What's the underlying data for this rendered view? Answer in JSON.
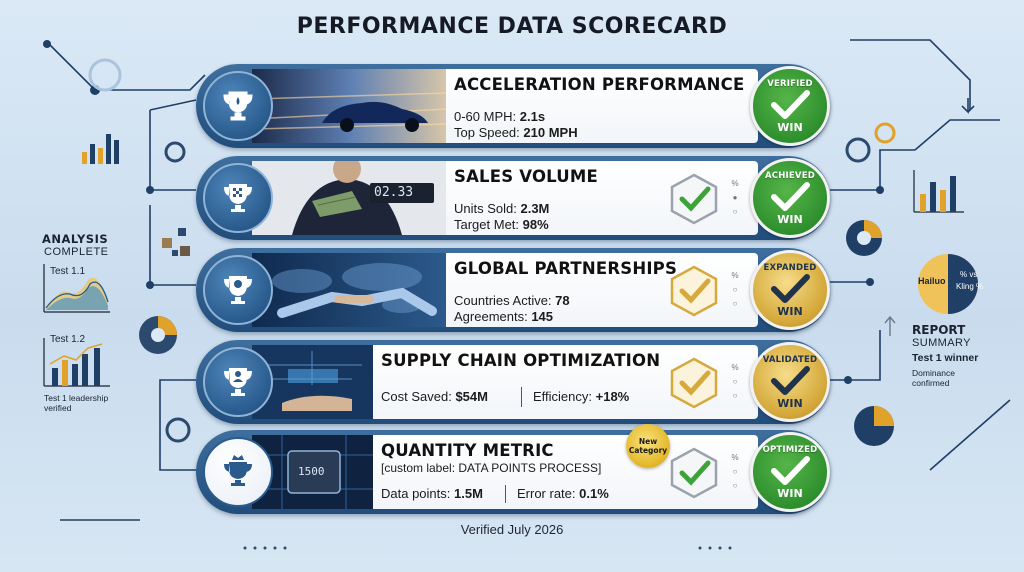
{
  "title": "PERFORMANCE DATA SCORECARD",
  "rows": [
    {
      "title": "ACCELERATION PERFORMANCE",
      "line1_label": "0-60 MPH: ",
      "line1_value": "2.1s",
      "line2_label": "Top Speed: ",
      "line2_value": "210 MPH",
      "badge_top": "VERIFIED",
      "badge_win": "WIN",
      "badge_style": "green"
    },
    {
      "title": "SALES VOLUME",
      "line1_label": "Units Sold: ",
      "line1_value": "2.3M",
      "line2_label": "Target Met: ",
      "line2_value": "98%",
      "counter": "02.33",
      "badge_top": "ACHIEVED",
      "badge_win": "WIN",
      "badge_style": "green"
    },
    {
      "title": "GLOBAL PARTNERSHIPS",
      "line1_label": "Countries Active: ",
      "line1_value": "78",
      "line2_label": "Agreements: ",
      "line2_value": "145",
      "badge_top": "EXPANDED",
      "badge_win": "WIN",
      "badge_style": "gold"
    },
    {
      "title": "SUPPLY CHAIN OPTIMIZATION",
      "line1_label": "Cost Saved: ",
      "line1_value": "$54M",
      "line2_label": "Efficiency: ",
      "line2_value": "+18%",
      "badge_top": "VALIDATED",
      "badge_win": "WIN",
      "badge_style": "gold"
    },
    {
      "title": "QUANTITY METRIC",
      "subtitle": "[custom label: DATA POINTS PROCESS]",
      "line1_label": "Data points: ",
      "line1_value": "1.5M",
      "line2_label": "Error rate: ",
      "line2_value": "0.1%",
      "chip": "1500",
      "new_badge_line1": "New",
      "new_badge_line2": "Category",
      "badge_top": "OPTIMIZED",
      "badge_win": "WIN",
      "badge_style": "green"
    }
  ],
  "left_panel": {
    "analysis_line1": "ANALYSIS",
    "analysis_line2": "COMPLETE",
    "test1": "Test 1.1",
    "test2": "Test 1.2",
    "note_line1": "Test 1 leadership",
    "note_line2": "verified"
  },
  "right_panel": {
    "pie_label_left": "Hailuo",
    "pie_label_right_line1": "% vs",
    "pie_label_right_line2": "Kling %",
    "report_line1": "REPORT",
    "report_line2": "SUMMARY",
    "winner": "Test 1 winner",
    "dominance_line1": "Dominance",
    "dominance_line2": "confirmed"
  },
  "mini_marks": [
    "%",
    "%",
    "%",
    "%"
  ],
  "footer": "Verified July 2026",
  "colors": {
    "pill": "#214d7c",
    "green_badge": "#2f8f2e",
    "gold_badge": "#d5a93b",
    "accent_orange": "#e0a22a"
  }
}
